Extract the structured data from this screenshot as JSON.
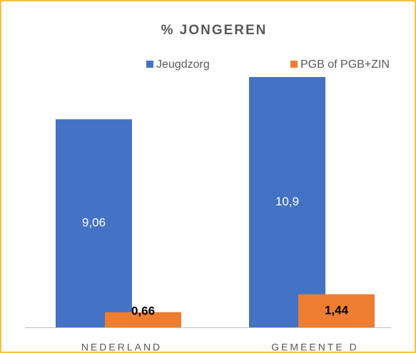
{
  "chart_data": {
    "type": "bar",
    "title": "% JONGEREN",
    "categories": [
      "NEDERLAND",
      "GEMEENTE D"
    ],
    "series": [
      {
        "name": "Jeugdzorg",
        "color": "#4472c4",
        "values": [
          9.06,
          10.9
        ],
        "value_labels": [
          "9,06",
          "10,9"
        ]
      },
      {
        "name": "PGB of PGB+ZIN",
        "color": "#ed7d31",
        "values": [
          0.66,
          1.44
        ],
        "value_labels": [
          "0,66",
          "1,44"
        ]
      }
    ]
  }
}
